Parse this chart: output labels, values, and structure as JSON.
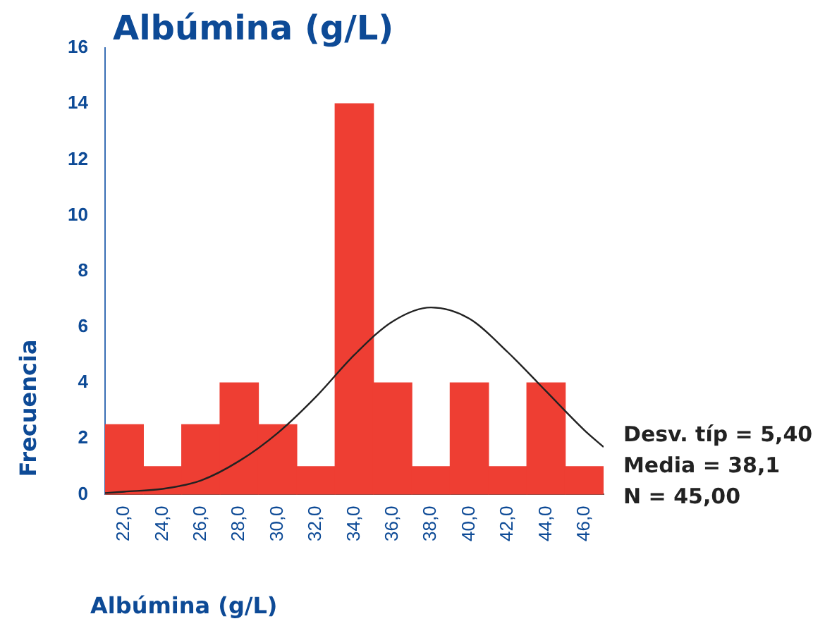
{
  "chart_data": {
    "type": "histogram",
    "title": "Albúmina (g/L)",
    "xlabel": "Albúmina (g/L)",
    "ylabel": "Frecuencia",
    "bins": [
      21,
      23,
      25,
      27,
      29,
      31,
      33,
      35,
      37,
      39,
      41,
      43,
      45,
      47
    ],
    "values": [
      2.5,
      1,
      2.5,
      4,
      2.5,
      1,
      14,
      4,
      1,
      4,
      1,
      4,
      1
    ],
    "color": "#ee3e33",
    "xlim": [
      21,
      47
    ],
    "xticks": [
      {
        "value": 22,
        "label": "22,0"
      },
      {
        "value": 24,
        "label": "24,0"
      },
      {
        "value": 26,
        "label": "26,0"
      },
      {
        "value": 28,
        "label": "28,0"
      },
      {
        "value": 30,
        "label": "30,0"
      },
      {
        "value": 32,
        "label": "32,0"
      },
      {
        "value": 34,
        "label": "34,0"
      },
      {
        "value": 36,
        "label": "36,0"
      },
      {
        "value": 38,
        "label": "38,0"
      },
      {
        "value": 40,
        "label": "40,0"
      },
      {
        "value": 42,
        "label": "42,0"
      },
      {
        "value": 44,
        "label": "44,0"
      },
      {
        "value": 46,
        "label": "46,0"
      }
    ],
    "ylim": [
      0,
      16
    ],
    "yticks": [
      0,
      2,
      4,
      6,
      8,
      10,
      12,
      14,
      16
    ],
    "series": [
      {
        "type": "line",
        "color": "#222222",
        "x": [
          21,
          22,
          24,
          26,
          28,
          30,
          32,
          34,
          36,
          38,
          40,
          42,
          44,
          46,
          47
        ],
        "values": [
          0.05,
          0.1,
          0.2,
          0.5,
          1.2,
          2.2,
          3.5,
          5,
          6.2,
          6.7,
          6.3,
          5.1,
          3.7,
          2.3,
          1.7
        ]
      }
    ],
    "annotations": [
      "Desv. típ = 5,40",
      "Media = 38,1",
      "N = 45,00"
    ]
  }
}
